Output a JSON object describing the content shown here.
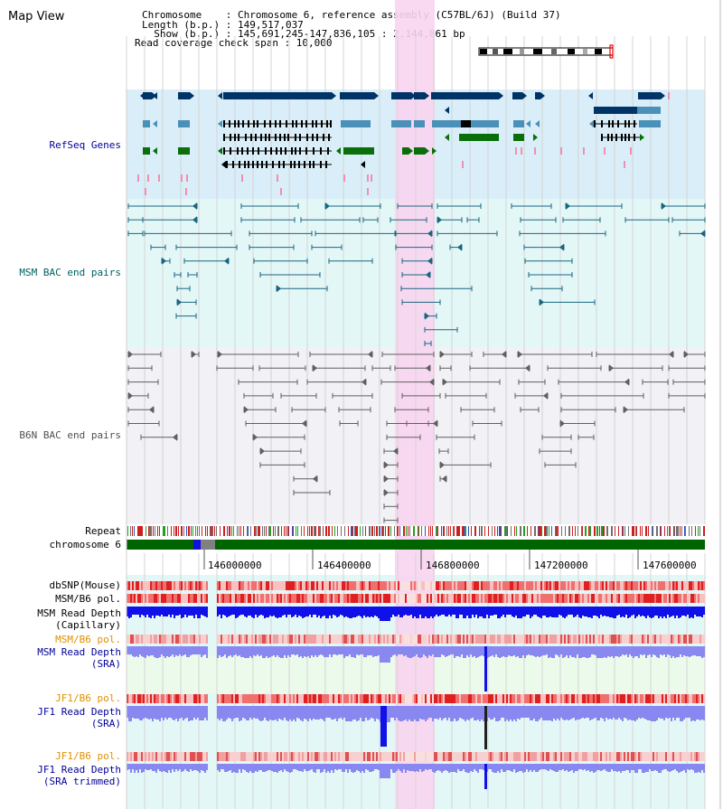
{
  "header": {
    "view_title": "Map View",
    "info_lines": [
      "Chromosome    : Chromosome 6, reference assembly (C57BL/6J) (Build 37)",
      "Length (b.p.) : 149,517,037",
      "  Show (b.p.) : 145,691,245-147,836,105 : 2,144,861 bp",
      "Read coverage check span : 10,000"
    ]
  },
  "track_labels": {
    "refseq": "RefSeq Genes",
    "msm_bac": "MSM BAC end pairs",
    "b6n_bac": "B6N BAC end pairs",
    "repeat": "Repeat",
    "chromosome": "chromosome 6",
    "dbsnp": "dbSNP(Mouse)",
    "msm_pol": "MSM/B6 pol.",
    "msm_depth_cap_1": "MSM Read Depth",
    "msm_depth_cap_2": "(Capillary)",
    "msm_pol_2": "MSM/B6 pol.",
    "msm_depth_sra_1": "MSM Read Depth",
    "msm_depth_sra_2": "(SRA)",
    "jf1_pol": "JF1/B6 pol.",
    "jf1_depth_sra_1": "JF1 Read Depth",
    "jf1_depth_sra_2": "(SRA)",
    "jf1_pol_2": "JF1/B6 pol.",
    "jf1_depth_trim_1": "JF1 Read Depth",
    "jf1_depth_trim_2": "(SRA trimmed)"
  },
  "axis": {
    "ticks": [
      "146000000",
      "146400000",
      "146800000",
      "147200000",
      "147600000"
    ]
  },
  "colors": {
    "panel_refseq": "#d9eef9",
    "panel_msm_bac": "#e4f7f7",
    "panel_b6n_bac": "#f1f1f6",
    "panel_depth": "#e4f7f7",
    "panel_msm_sra": "#ecfaec",
    "highlight": "#f8d4f0",
    "chromosome_green": "#006400",
    "navy": "#003366",
    "steel_blue": "#4a90b8",
    "gene_green": "#0a6e0a",
    "depth_blue": "#1010e8",
    "depth_light": "#8888f0",
    "teal": "#1a6680",
    "grey_line": "#606060",
    "label_blue": "#000099",
    "label_teal": "#006060",
    "label_grey": "#505050",
    "label_orange": "#e09000"
  }
}
